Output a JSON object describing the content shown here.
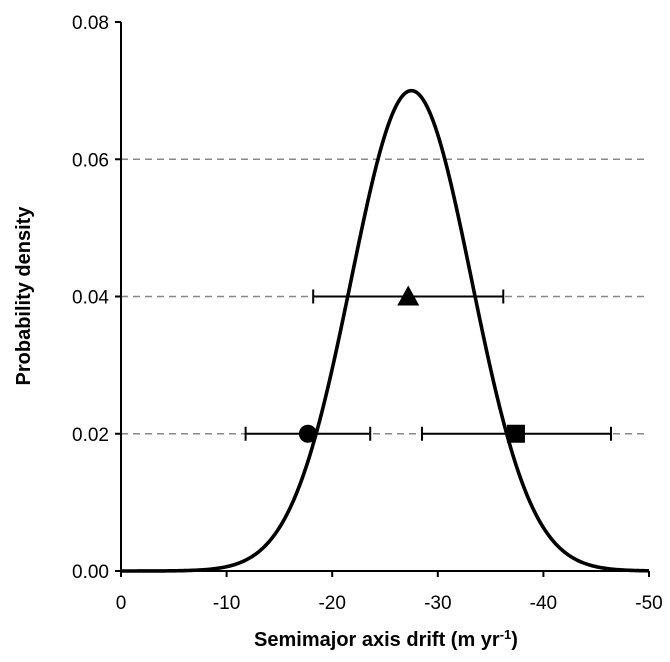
{
  "chart_data": {
    "type": "line",
    "title": "",
    "xlabel": "Semimajor axis drift (m yr",
    "xlabel_superscript": "-1",
    "xlabel_close": ")",
    "ylabel": "Probability density",
    "xlim": [
      0,
      -50
    ],
    "ylim": [
      0,
      0.08
    ],
    "x_axis_reversed": true,
    "xticks": [
      0,
      -10,
      -20,
      -30,
      -40,
      -50
    ],
    "xtick_labels": [
      "0",
      "-10",
      "-20",
      "-30",
      "-40",
      "-50"
    ],
    "yticks": [
      0,
      0.02,
      0.04,
      0.06,
      0.08
    ],
    "ytick_labels": [
      "0.00",
      "0.02",
      "0.04",
      "0.06",
      "0.08"
    ],
    "grid": {
      "horizontal_dashed_at": [
        0.02,
        0.04,
        0.06
      ],
      "color": "#888888"
    },
    "legend": "none",
    "series": [
      {
        "kind": "curve",
        "distribution": "gaussian",
        "mean": -27.5,
        "std_dev": 5.7,
        "peak": 0.07,
        "color": "#000000"
      },
      {
        "kind": "point",
        "marker": "circle",
        "x": -17.7,
        "y": 0.02,
        "x_error_low": -11.8,
        "x_error_high": -23.6,
        "color": "#000000"
      },
      {
        "kind": "point",
        "marker": "triangle",
        "x": -27.2,
        "y": 0.04,
        "x_error_low": -18.2,
        "x_error_high": -36.2,
        "color": "#000000"
      },
      {
        "kind": "point",
        "marker": "square",
        "x": -37.4,
        "y": 0.02,
        "x_error_low": -28.5,
        "x_error_high": -46.4,
        "color": "#000000"
      }
    ]
  }
}
